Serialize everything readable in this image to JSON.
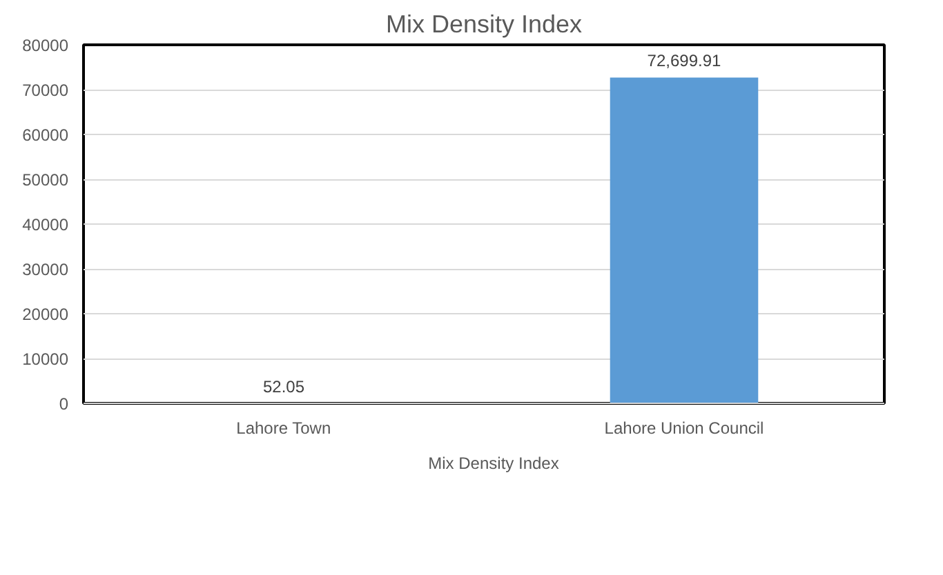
{
  "chart_data": {
    "type": "bar",
    "title": "Mix Density Index",
    "categories": [
      "Lahore Town",
      "Lahore Union Council"
    ],
    "series": [
      {
        "name": "Mix Density Index",
        "color": "#5b9bd5",
        "values": [
          52.05,
          72699.91
        ]
      }
    ],
    "value_labels": [
      "52.05",
      "72,699.91"
    ],
    "ylim": [
      0,
      80000
    ],
    "yticks": [
      0,
      10000,
      20000,
      30000,
      40000,
      50000,
      60000,
      70000,
      80000
    ],
    "grid": "y",
    "legend": "bottom"
  }
}
